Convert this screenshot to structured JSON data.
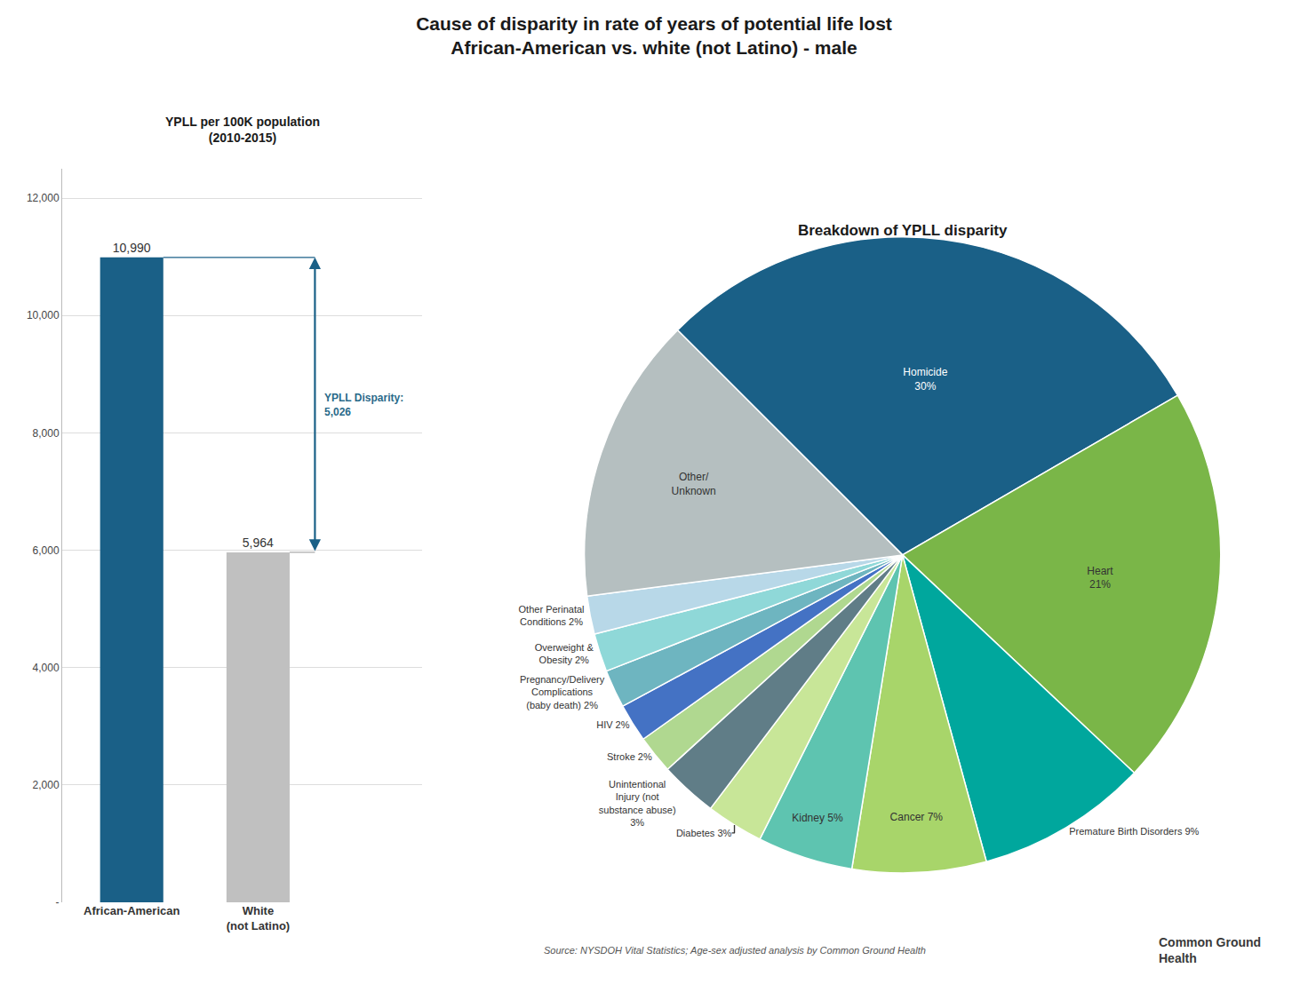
{
  "chart_data": [
    {
      "type": "bar",
      "title": "Cause of disparity in rate of years of potential life lost\nAfrican-American vs. white (not Latino) - male",
      "subtitle": "YPLL per 100K population\n(2010-2015)",
      "categories": [
        "African-American",
        "White\n(not Latino)"
      ],
      "values": [
        10990,
        5964
      ],
      "value_labels": [
        "10,990",
        "5,964"
      ],
      "data_labels": true,
      "colors": [
        "#1a6087",
        "#c0c0c0"
      ],
      "ylim": [
        0,
        12500
      ],
      "yticks": [
        {
          "value": 0,
          "label": "-"
        },
        {
          "value": 2000,
          "label": "2,000"
        },
        {
          "value": 4000,
          "label": "4,000"
        },
        {
          "value": 6000,
          "label": "6,000"
        },
        {
          "value": 8000,
          "label": "8,000"
        },
        {
          "value": 10000,
          "label": "10,000"
        },
        {
          "value": 12000,
          "label": "12,000"
        }
      ],
      "grid": true,
      "annotations": [
        "YPLL Disparity:\n5,026"
      ]
    },
    {
      "type": "pie",
      "title": "Breakdown of YPLL disparity",
      "categories": [
        "Homicide\n30%",
        "Heart\n21%",
        "Premature Birth Disorders 9%",
        "Cancer 7%",
        "Kidney 5%",
        "Diabetes 3%",
        "Unintentional\nInjury (not\nsubstance abuse)\n3%",
        "Stroke 2%",
        "HIV 2%",
        "Pregnancy/Delivery\nComplications\n(baby death) 2%",
        "Overweight &\nObesity 2%",
        "Other Perinatal\nConditions 2%",
        "Other/\nUnknown"
      ],
      "values": [
        30,
        21,
        9,
        7,
        5,
        3,
        3,
        2,
        2,
        2,
        2,
        2,
        15
      ],
      "colors": [
        "#1a6087",
        "#7ab648",
        "#00a79d",
        "#a8d56a",
        "#5ec4b0",
        "#c8e698",
        "#607d87",
        "#b0d890",
        "#4472c4",
        "#6eb5c0",
        "#8fd8d8",
        "#b8d8e8",
        "#b5bfc0"
      ],
      "source": "Source: NYSDOH Vital Statistics; Age-sex adjusted analysis by Common Ground Health",
      "annotations": [
        "Common Ground\nHealth"
      ]
    }
  ]
}
